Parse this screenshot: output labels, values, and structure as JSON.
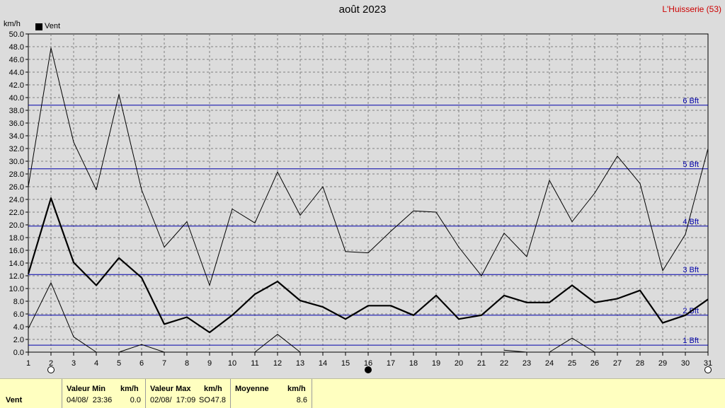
{
  "header": {
    "title": "août 2023",
    "station": "L'Huisserie (53)"
  },
  "legend": {
    "label": "Vent",
    "color": "#000000"
  },
  "colors": {
    "background": "#dcdcdc",
    "grid": "#808080",
    "beaufort": "#0000aa",
    "summary_bg": "#ffffc0"
  },
  "chart_data": {
    "type": "line",
    "ylabel": "km/h",
    "ylim": [
      0,
      50
    ],
    "ytick_step": 2,
    "x": [
      1,
      2,
      3,
      4,
      5,
      6,
      7,
      8,
      9,
      10,
      11,
      12,
      13,
      14,
      15,
      16,
      17,
      18,
      19,
      20,
      21,
      22,
      23,
      24,
      25,
      26,
      27,
      28,
      29,
      30,
      31
    ],
    "series": [
      {
        "role": "max",
        "values": [
          26.0,
          47.8,
          33.0,
          25.5,
          40.5,
          25.5,
          16.5,
          20.5,
          10.5,
          22.5,
          20.3,
          28.3,
          21.5,
          26.0,
          15.8,
          15.6,
          19.0,
          22.2,
          22.0,
          16.5,
          12.0,
          18.7,
          15.0,
          27.0,
          20.5,
          25.0,
          30.8,
          26.5,
          12.8,
          18.5,
          32.0
        ]
      },
      {
        "name": "Vent",
        "role": "avg",
        "values": [
          12.3,
          24.2,
          14.1,
          10.5,
          14.8,
          11.7,
          4.4,
          5.5,
          3.1,
          5.8,
          9.1,
          11.1,
          8.1,
          7.1,
          5.2,
          7.3,
          7.3,
          5.8,
          8.9,
          5.2,
          5.8,
          8.9,
          7.8,
          7.8,
          10.5,
          7.8,
          8.4,
          9.7,
          4.6,
          5.8,
          8.3
        ]
      },
      {
        "role": "min",
        "values": [
          3.7,
          10.9,
          2.4,
          0.0,
          0.0,
          1.2,
          0.0,
          null,
          null,
          null,
          0.0,
          2.8,
          0.0,
          null,
          null,
          null,
          null,
          null,
          null,
          null,
          null,
          0.3,
          0.0,
          0.0,
          2.2,
          0.0,
          null,
          null,
          null,
          null,
          null
        ]
      }
    ],
    "beaufort": [
      {
        "label": "1 Bft",
        "value": 1.1
      },
      {
        "label": "2 Bft",
        "value": 5.8
      },
      {
        "label": "3 Bft",
        "value": 12.2
      },
      {
        "label": "4 Bft",
        "value": 19.8
      },
      {
        "label": "5 Bft",
        "value": 28.8
      },
      {
        "label": "6 Bft",
        "value": 38.8
      }
    ],
    "moon_phases": [
      {
        "day": 2,
        "phase": "full"
      },
      {
        "day": 16,
        "phase": "new"
      },
      {
        "day": 31,
        "phase": "full"
      }
    ]
  },
  "summary": {
    "row_label": "Vent",
    "min": {
      "header": "Valeur Min",
      "unit": "km/h",
      "when": "04/08/  23:36",
      "value": "0.0"
    },
    "max": {
      "header": "Valeur Max",
      "unit": "km/h",
      "when": "02/08/  17:09",
      "dir": "SO",
      "value": "47.8"
    },
    "avg": {
      "header": "Moyenne",
      "unit": "km/h",
      "value": "8.6"
    }
  }
}
